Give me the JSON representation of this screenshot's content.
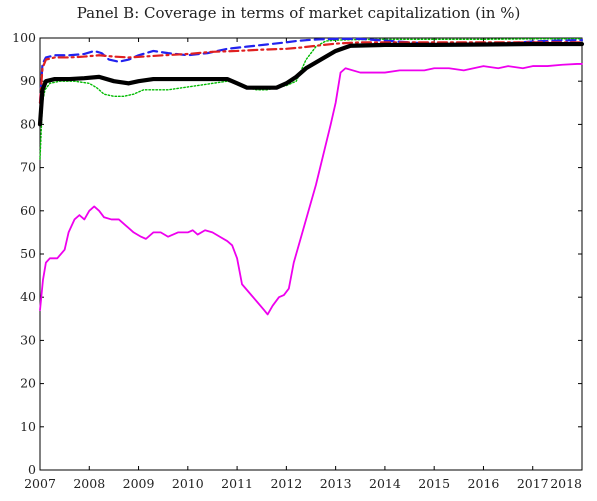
{
  "chart_data": {
    "type": "line",
    "title": "Panel B: Coverage in terms of market capitalization (in %)",
    "xlabel": "",
    "ylabel": "",
    "xlim": [
      2007,
      2018
    ],
    "ylim": [
      0,
      100
    ],
    "xticks": [
      "2007",
      "2008",
      "2009",
      "2010",
      "2011",
      "2012",
      "2013",
      "2014",
      "2015",
      "2016",
      "2017",
      "2018"
    ],
    "yticks": [
      0,
      10,
      20,
      30,
      40,
      50,
      60,
      70,
      80,
      90,
      100
    ],
    "grid": false,
    "legend": "none",
    "series": [
      {
        "color": "#00bb00",
        "style": "dotted",
        "x": [
          2007.0,
          2007.05,
          2007.1,
          2007.2,
          2007.4,
          2007.7,
          2008.0,
          2008.15,
          2008.3,
          2008.5,
          2008.7,
          2008.9,
          2009.1,
          2009.3,
          2009.6,
          2009.9,
          2010.2,
          2010.5,
          2010.8,
          2011.0,
          2011.2,
          2011.4,
          2011.6,
          2011.8,
          2012.0,
          2012.2,
          2012.4,
          2012.6,
          2012.8,
          2013.0,
          2013.3,
          2014.0,
          2015.0,
          2016.0,
          2017.0,
          2018.0
        ],
        "values": [
          72,
          85,
          88,
          89.5,
          90,
          90,
          89.5,
          88.5,
          87,
          86.5,
          86.5,
          87,
          88,
          88,
          88,
          88.5,
          89,
          89.5,
          90,
          89.5,
          88.5,
          88,
          88,
          88.5,
          89,
          90,
          95,
          98,
          99.3,
          99.5,
          99.6,
          99.7,
          99.7,
          99.7,
          99.8,
          99.8
        ]
      },
      {
        "color": "#2222ee",
        "style": "dashed",
        "x": [
          2007.0,
          2007.05,
          2007.12,
          2007.3,
          2007.6,
          2007.9,
          2008.1,
          2008.25,
          2008.4,
          2008.6,
          2008.8,
          2009.0,
          2009.3,
          2009.6,
          2010.0,
          2010.4,
          2010.8,
          2011.2,
          2011.6,
          2012.0,
          2012.2,
          2012.4,
          2012.7,
          2013.0,
          2013.5,
          2014.0,
          2014.5,
          2015.0,
          2015.5,
          2016.0,
          2016.5,
          2017.0,
          2017.5,
          2018.0
        ],
        "values": [
          85,
          94,
          95.5,
          96,
          96,
          96.3,
          97,
          96.5,
          95,
          94.5,
          95,
          96,
          97,
          96.5,
          96,
          96.5,
          97.5,
          98,
          98.5,
          99,
          99.3,
          99.5,
          99.7,
          99.8,
          99.8,
          99.4,
          99,
          98.6,
          98.3,
          98.5,
          98.8,
          99.2,
          99.4,
          99.5
        ]
      },
      {
        "color": "#e02020",
        "style": "dashdot",
        "x": [
          2007.0,
          2007.05,
          2007.12,
          2007.3,
          2007.6,
          2007.9,
          2008.2,
          2008.5,
          2008.8,
          2009.1,
          2009.5,
          2010.0,
          2010.5,
          2011.0,
          2011.5,
          2012.0,
          2012.3,
          2012.6,
          2013.0,
          2013.5,
          2014.0,
          2015.0,
          2016.0,
          2017.0,
          2018.0
        ],
        "values": [
          85,
          93,
          95,
          95.5,
          95.5,
          95.7,
          96,
          95.7,
          95.5,
          95.7,
          96,
          96.3,
          96.8,
          97,
          97.3,
          97.5,
          97.8,
          98.2,
          98.7,
          99,
          99,
          99,
          99,
          99,
          99
        ]
      },
      {
        "color": "#000000",
        "style": "solid-thick",
        "x": [
          2007.0,
          2007.05,
          2007.12,
          2007.3,
          2007.6,
          2007.9,
          2008.2,
          2008.5,
          2008.8,
          2009.0,
          2009.3,
          2009.6,
          2010.0,
          2010.4,
          2010.8,
          2011.0,
          2011.2,
          2011.4,
          2011.6,
          2011.8,
          2012.0,
          2012.2,
          2012.4,
          2012.7,
          2013.0,
          2013.3,
          2014.0,
          2015.0,
          2016.0,
          2017.0,
          2018.0
        ],
        "values": [
          80,
          88,
          90,
          90.5,
          90.5,
          90.7,
          91,
          90,
          89.5,
          90,
          90.5,
          90.5,
          90.5,
          90.5,
          90.5,
          89.5,
          88.5,
          88.5,
          88.5,
          88.5,
          89.5,
          91,
          93,
          95,
          97,
          98.2,
          98.4,
          98.4,
          98.5,
          98.6,
          98.6
        ]
      },
      {
        "color": "#ee00ee",
        "style": "solid",
        "x": [
          2007.0,
          2007.06,
          2007.12,
          2007.2,
          2007.35,
          2007.5,
          2007.58,
          2007.7,
          2007.8,
          2007.9,
          2008.0,
          2008.1,
          2008.2,
          2008.3,
          2008.45,
          2008.6,
          2008.75,
          2008.9,
          2009.05,
          2009.15,
          2009.3,
          2009.45,
          2009.6,
          2009.8,
          2010.0,
          2010.1,
          2010.2,
          2010.35,
          2010.5,
          2010.65,
          2010.8,
          2010.9,
          2011.0,
          2011.1,
          2011.25,
          2011.4,
          2011.55,
          2011.62,
          2011.72,
          2011.85,
          2011.95,
          2012.05,
          2012.15,
          2012.3,
          2012.45,
          2012.6,
          2012.75,
          2012.9,
          2013.0,
          2013.1,
          2013.2,
          2013.5,
          2013.8,
          2014.0,
          2014.3,
          2014.5,
          2014.8,
          2015.0,
          2015.3,
          2015.6,
          2015.8,
          2016.0,
          2016.3,
          2016.5,
          2016.8,
          2017.0,
          2017.3,
          2017.6,
          2017.9,
          2018.0
        ],
        "values": [
          37,
          44,
          48,
          49,
          49,
          51,
          55,
          58,
          59,
          58,
          60,
          61,
          60,
          58.5,
          58,
          58,
          56.5,
          55,
          54,
          53.5,
          55,
          55,
          54,
          55,
          55,
          55.5,
          54.5,
          55.5,
          55,
          54,
          53,
          52,
          49,
          43,
          41,
          39,
          37,
          36,
          38,
          40,
          40.5,
          42,
          48,
          54,
          60,
          66,
          73,
          80,
          85,
          92,
          93,
          92,
          92,
          92,
          92.5,
          92.5,
          92.5,
          93,
          93,
          92.5,
          93,
          93.5,
          93,
          93.5,
          93,
          93.5,
          93.5,
          93.8,
          94,
          94
        ]
      }
    ]
  }
}
